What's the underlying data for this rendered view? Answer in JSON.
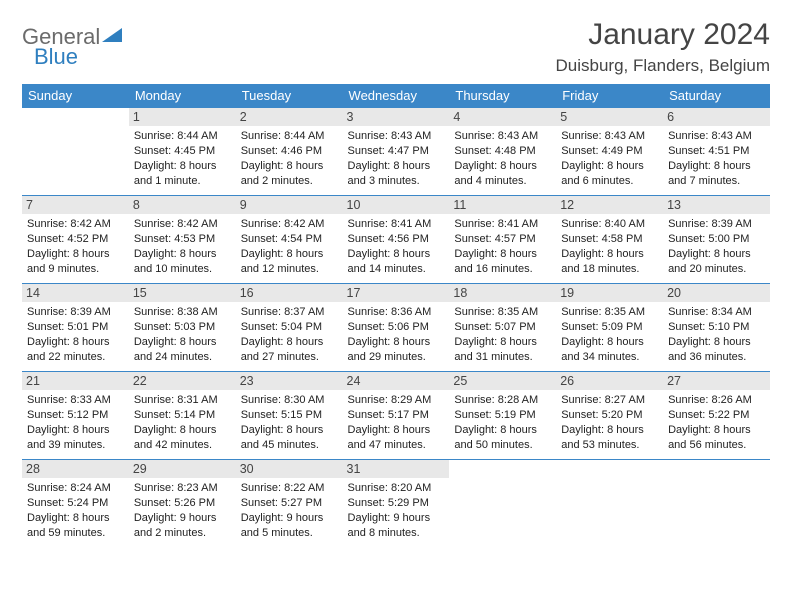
{
  "logo": {
    "text1": "General",
    "text2": "Blue",
    "icon_color": "#2f7fbf"
  },
  "title": "January 2024",
  "location": "Duisburg, Flanders, Belgium",
  "colors": {
    "header_bg": "#3b87c8",
    "header_text": "#ffffff",
    "border": "#3b87c8",
    "daynum_bg": "#e8e8e8",
    "body_text": "#222222"
  },
  "weekdays": [
    "Sunday",
    "Monday",
    "Tuesday",
    "Wednesday",
    "Thursday",
    "Friday",
    "Saturday"
  ],
  "start_offset": 1,
  "days": [
    {
      "n": 1,
      "sunrise": "8:44 AM",
      "sunset": "4:45 PM",
      "daylight": "8 hours and 1 minute."
    },
    {
      "n": 2,
      "sunrise": "8:44 AM",
      "sunset": "4:46 PM",
      "daylight": "8 hours and 2 minutes."
    },
    {
      "n": 3,
      "sunrise": "8:43 AM",
      "sunset": "4:47 PM",
      "daylight": "8 hours and 3 minutes."
    },
    {
      "n": 4,
      "sunrise": "8:43 AM",
      "sunset": "4:48 PM",
      "daylight": "8 hours and 4 minutes."
    },
    {
      "n": 5,
      "sunrise": "8:43 AM",
      "sunset": "4:49 PM",
      "daylight": "8 hours and 6 minutes."
    },
    {
      "n": 6,
      "sunrise": "8:43 AM",
      "sunset": "4:51 PM",
      "daylight": "8 hours and 7 minutes."
    },
    {
      "n": 7,
      "sunrise": "8:42 AM",
      "sunset": "4:52 PM",
      "daylight": "8 hours and 9 minutes."
    },
    {
      "n": 8,
      "sunrise": "8:42 AM",
      "sunset": "4:53 PM",
      "daylight": "8 hours and 10 minutes."
    },
    {
      "n": 9,
      "sunrise": "8:42 AM",
      "sunset": "4:54 PM",
      "daylight": "8 hours and 12 minutes."
    },
    {
      "n": 10,
      "sunrise": "8:41 AM",
      "sunset": "4:56 PM",
      "daylight": "8 hours and 14 minutes."
    },
    {
      "n": 11,
      "sunrise": "8:41 AM",
      "sunset": "4:57 PM",
      "daylight": "8 hours and 16 minutes."
    },
    {
      "n": 12,
      "sunrise": "8:40 AM",
      "sunset": "4:58 PM",
      "daylight": "8 hours and 18 minutes."
    },
    {
      "n": 13,
      "sunrise": "8:39 AM",
      "sunset": "5:00 PM",
      "daylight": "8 hours and 20 minutes."
    },
    {
      "n": 14,
      "sunrise": "8:39 AM",
      "sunset": "5:01 PM",
      "daylight": "8 hours and 22 minutes."
    },
    {
      "n": 15,
      "sunrise": "8:38 AM",
      "sunset": "5:03 PM",
      "daylight": "8 hours and 24 minutes."
    },
    {
      "n": 16,
      "sunrise": "8:37 AM",
      "sunset": "5:04 PM",
      "daylight": "8 hours and 27 minutes."
    },
    {
      "n": 17,
      "sunrise": "8:36 AM",
      "sunset": "5:06 PM",
      "daylight": "8 hours and 29 minutes."
    },
    {
      "n": 18,
      "sunrise": "8:35 AM",
      "sunset": "5:07 PM",
      "daylight": "8 hours and 31 minutes."
    },
    {
      "n": 19,
      "sunrise": "8:35 AM",
      "sunset": "5:09 PM",
      "daylight": "8 hours and 34 minutes."
    },
    {
      "n": 20,
      "sunrise": "8:34 AM",
      "sunset": "5:10 PM",
      "daylight": "8 hours and 36 minutes."
    },
    {
      "n": 21,
      "sunrise": "8:33 AM",
      "sunset": "5:12 PM",
      "daylight": "8 hours and 39 minutes."
    },
    {
      "n": 22,
      "sunrise": "8:31 AM",
      "sunset": "5:14 PM",
      "daylight": "8 hours and 42 minutes."
    },
    {
      "n": 23,
      "sunrise": "8:30 AM",
      "sunset": "5:15 PM",
      "daylight": "8 hours and 45 minutes."
    },
    {
      "n": 24,
      "sunrise": "8:29 AM",
      "sunset": "5:17 PM",
      "daylight": "8 hours and 47 minutes."
    },
    {
      "n": 25,
      "sunrise": "8:28 AM",
      "sunset": "5:19 PM",
      "daylight": "8 hours and 50 minutes."
    },
    {
      "n": 26,
      "sunrise": "8:27 AM",
      "sunset": "5:20 PM",
      "daylight": "8 hours and 53 minutes."
    },
    {
      "n": 27,
      "sunrise": "8:26 AM",
      "sunset": "5:22 PM",
      "daylight": "8 hours and 56 minutes."
    },
    {
      "n": 28,
      "sunrise": "8:24 AM",
      "sunset": "5:24 PM",
      "daylight": "8 hours and 59 minutes."
    },
    {
      "n": 29,
      "sunrise": "8:23 AM",
      "sunset": "5:26 PM",
      "daylight": "9 hours and 2 minutes."
    },
    {
      "n": 30,
      "sunrise": "8:22 AM",
      "sunset": "5:27 PM",
      "daylight": "9 hours and 5 minutes."
    },
    {
      "n": 31,
      "sunrise": "8:20 AM",
      "sunset": "5:29 PM",
      "daylight": "9 hours and 8 minutes."
    }
  ],
  "labels": {
    "sunrise": "Sunrise:",
    "sunset": "Sunset:",
    "daylight": "Daylight:"
  }
}
